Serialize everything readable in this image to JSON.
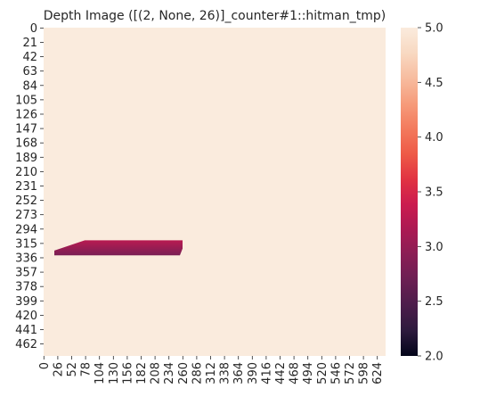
{
  "chart_data": {
    "type": "heatmap",
    "title": "Depth Image ([(2, None, 26)]_counter#1::hitman_tmp)",
    "xlabel": "",
    "ylabel": "",
    "width": 640,
    "height": 480,
    "xlim": [
      0,
      640
    ],
    "ylim": [
      0,
      480
    ],
    "x_ticks": [
      0,
      26,
      52,
      78,
      104,
      130,
      156,
      182,
      208,
      234,
      260,
      286,
      312,
      338,
      364,
      390,
      416,
      442,
      468,
      494,
      520,
      546,
      572,
      598,
      624
    ],
    "y_ticks": [
      0,
      21,
      42,
      63,
      84,
      105,
      126,
      147,
      168,
      189,
      210,
      231,
      252,
      273,
      294,
      315,
      336,
      357,
      378,
      399,
      420,
      441,
      462
    ],
    "x_tick_labels": [
      "0",
      "26",
      "52",
      "78",
      "104",
      "130",
      "156",
      "182",
      "208",
      "234",
      "260",
      "286",
      "312",
      "338",
      "364",
      "390",
      "416",
      "442",
      "468",
      "494",
      "520",
      "546",
      "572",
      "598",
      "624"
    ],
    "y_tick_labels": [
      "0",
      "21",
      "42",
      "63",
      "84",
      "105",
      "126",
      "147",
      "168",
      "189",
      "210",
      "231",
      "252",
      "273",
      "294",
      "315",
      "336",
      "357",
      "378",
      "399",
      "420",
      "441",
      "462"
    ],
    "background_value": 5.0,
    "regions": [
      {
        "shape": "polygon",
        "points": [
          [
            77,
            311
          ],
          [
            260,
            311
          ],
          [
            260,
            323
          ],
          [
            255,
            333
          ],
          [
            20,
            333
          ],
          [
            20,
            326
          ]
        ],
        "value_top": 3.25,
        "value_bottom": 2.8
      }
    ],
    "colorbar": {
      "vmin": 2.0,
      "vmax": 5.0,
      "ticks": [
        2.0,
        2.5,
        3.0,
        3.5,
        4.0,
        4.5,
        5.0
      ],
      "tick_labels": [
        "2.0",
        "2.5",
        "3.0",
        "3.5",
        "4.0",
        "4.5",
        "5.0"
      ],
      "colormap": "rocket",
      "colors": [
        "#03051a",
        "#2d1a3d",
        "#4c1d4b",
        "#6b1f53",
        "#8a1e55",
        "#ab1a53",
        "#cb1b4f",
        "#e13342",
        "#ee5a47",
        "#f37a5d",
        "#f69c7b",
        "#f7bc9f",
        "#f8d9c2",
        "#faebdd"
      ]
    }
  }
}
